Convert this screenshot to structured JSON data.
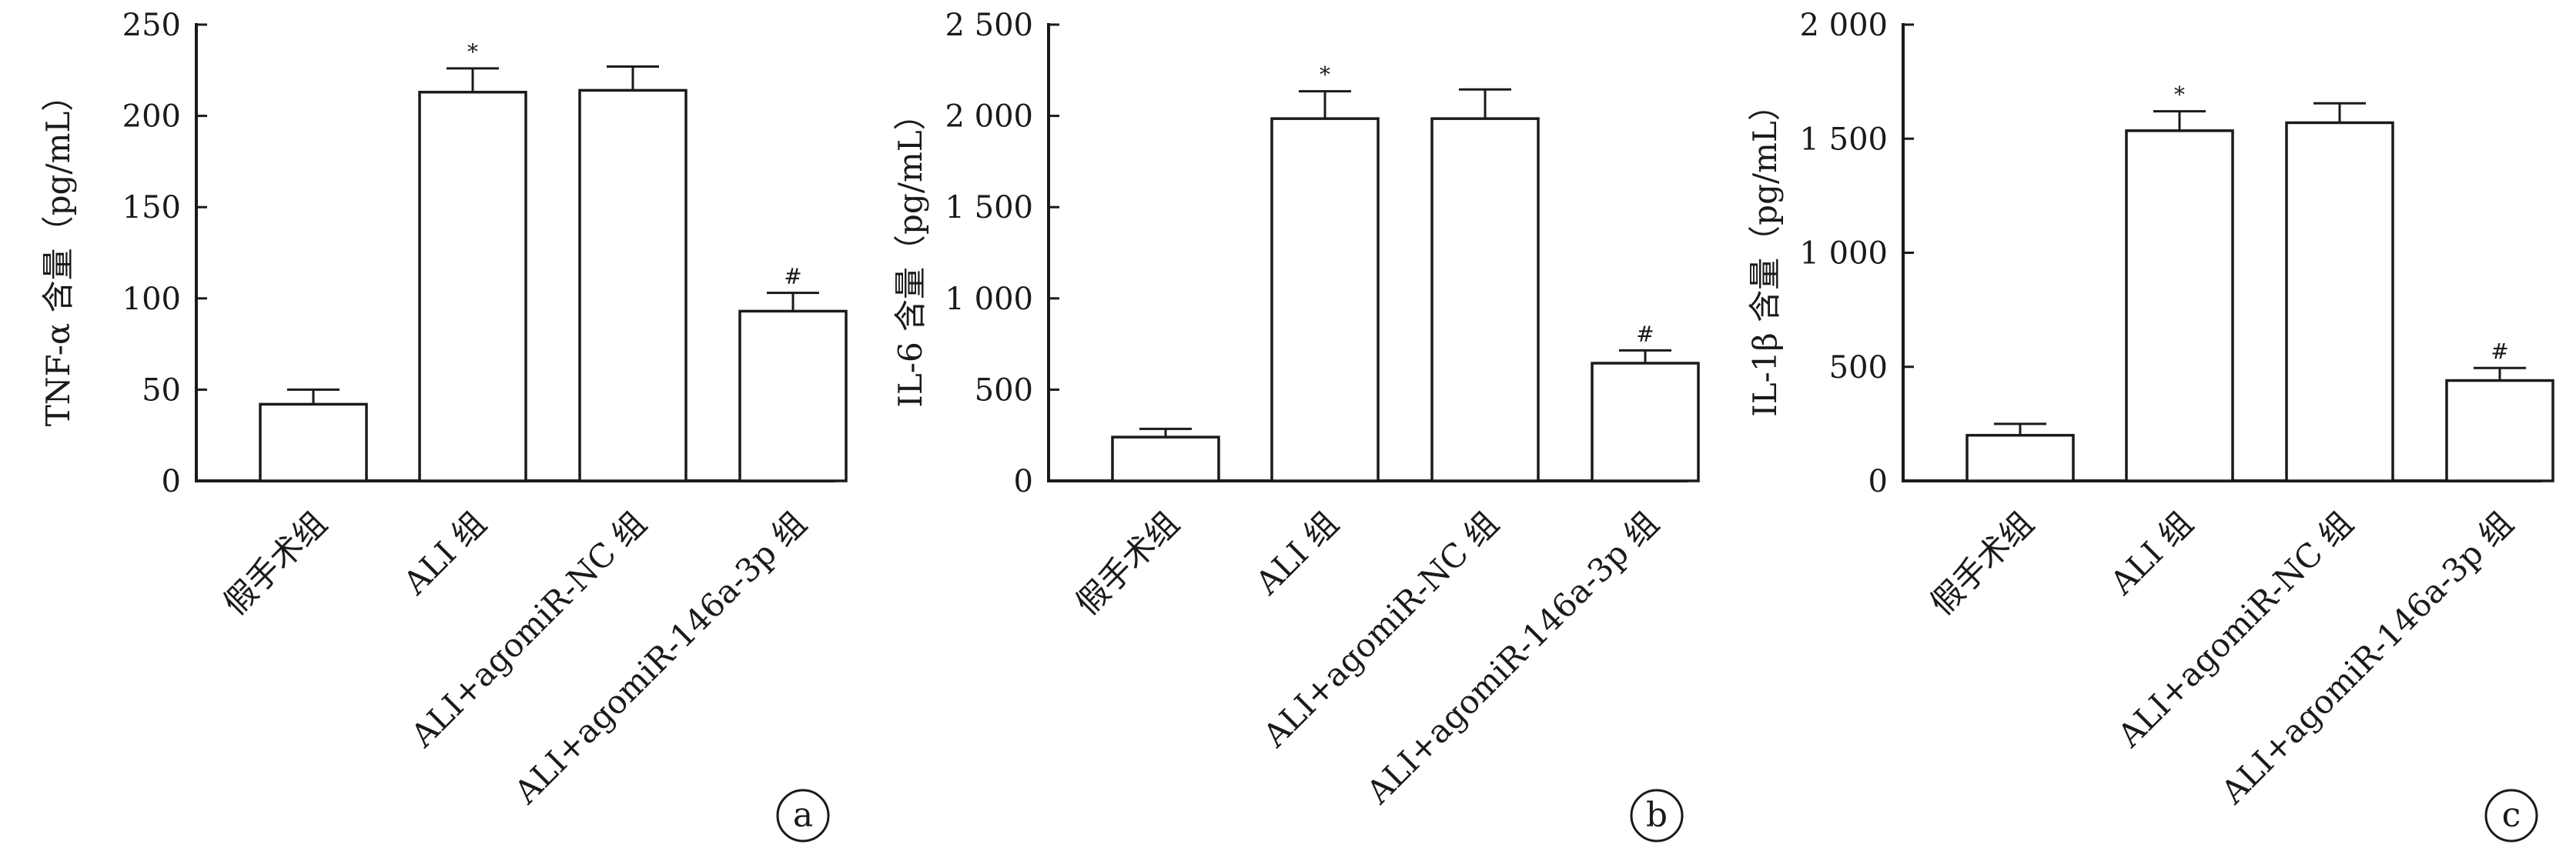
{
  "chart_data": [
    {
      "type": "bar",
      "ylabel": "TNF-α 含量（pg/mL）",
      "ylim": [
        0,
        250
      ],
      "yticks": [
        0,
        50,
        100,
        150,
        200,
        250
      ],
      "ytick_labels": [
        "0",
        "50",
        "100",
        "150",
        "200",
        "250"
      ],
      "categories": [
        "假手术组",
        "ALI 组",
        "ALI+agomiR-NC 组",
        "ALI+agomiR-146a-3p 组"
      ],
      "values": [
        42,
        213,
        214,
        93
      ],
      "errors": [
        8,
        13,
        13,
        10
      ],
      "markers": [
        "",
        "*",
        "",
        "#"
      ],
      "panel": "a",
      "grid": false,
      "bar_color": "#ffffff"
    },
    {
      "type": "bar",
      "ylabel": "IL-6 含量（pg/mL）",
      "ylim": [
        0,
        2500
      ],
      "yticks": [
        0,
        500,
        1000,
        1500,
        2000,
        2500
      ],
      "ytick_labels": [
        "0",
        "500",
        "1 000",
        "1 500",
        "2 000",
        "2 500"
      ],
      "categories": [
        "假手术组",
        "ALI 组",
        "ALI+agomiR-NC 组",
        "ALI+agomiR-146a-3p 组"
      ],
      "values": [
        240,
        1985,
        1985,
        645
      ],
      "errors": [
        45,
        150,
        160,
        70
      ],
      "markers": [
        "",
        "*",
        "",
        "#"
      ],
      "panel": "b",
      "grid": false,
      "bar_color": "#ffffff"
    },
    {
      "type": "bar",
      "ylabel": "IL-1β 含量（pg/mL）",
      "ylim": [
        0,
        2000
      ],
      "yticks": [
        0,
        500,
        1000,
        1500,
        2000
      ],
      "ytick_labels": [
        "0",
        "500",
        "1 000",
        "1 500",
        "2 000"
      ],
      "categories": [
        "假手术组",
        "ALI 组",
        "ALI+agomiR-NC 组",
        "ALI+agomiR-146a-3p 组"
      ],
      "values": [
        200,
        1535,
        1570,
        440
      ],
      "errors": [
        50,
        85,
        85,
        55
      ],
      "markers": [
        "",
        "*",
        "",
        "#"
      ],
      "panel": "c",
      "grid": false,
      "bar_color": "#ffffff"
    }
  ]
}
